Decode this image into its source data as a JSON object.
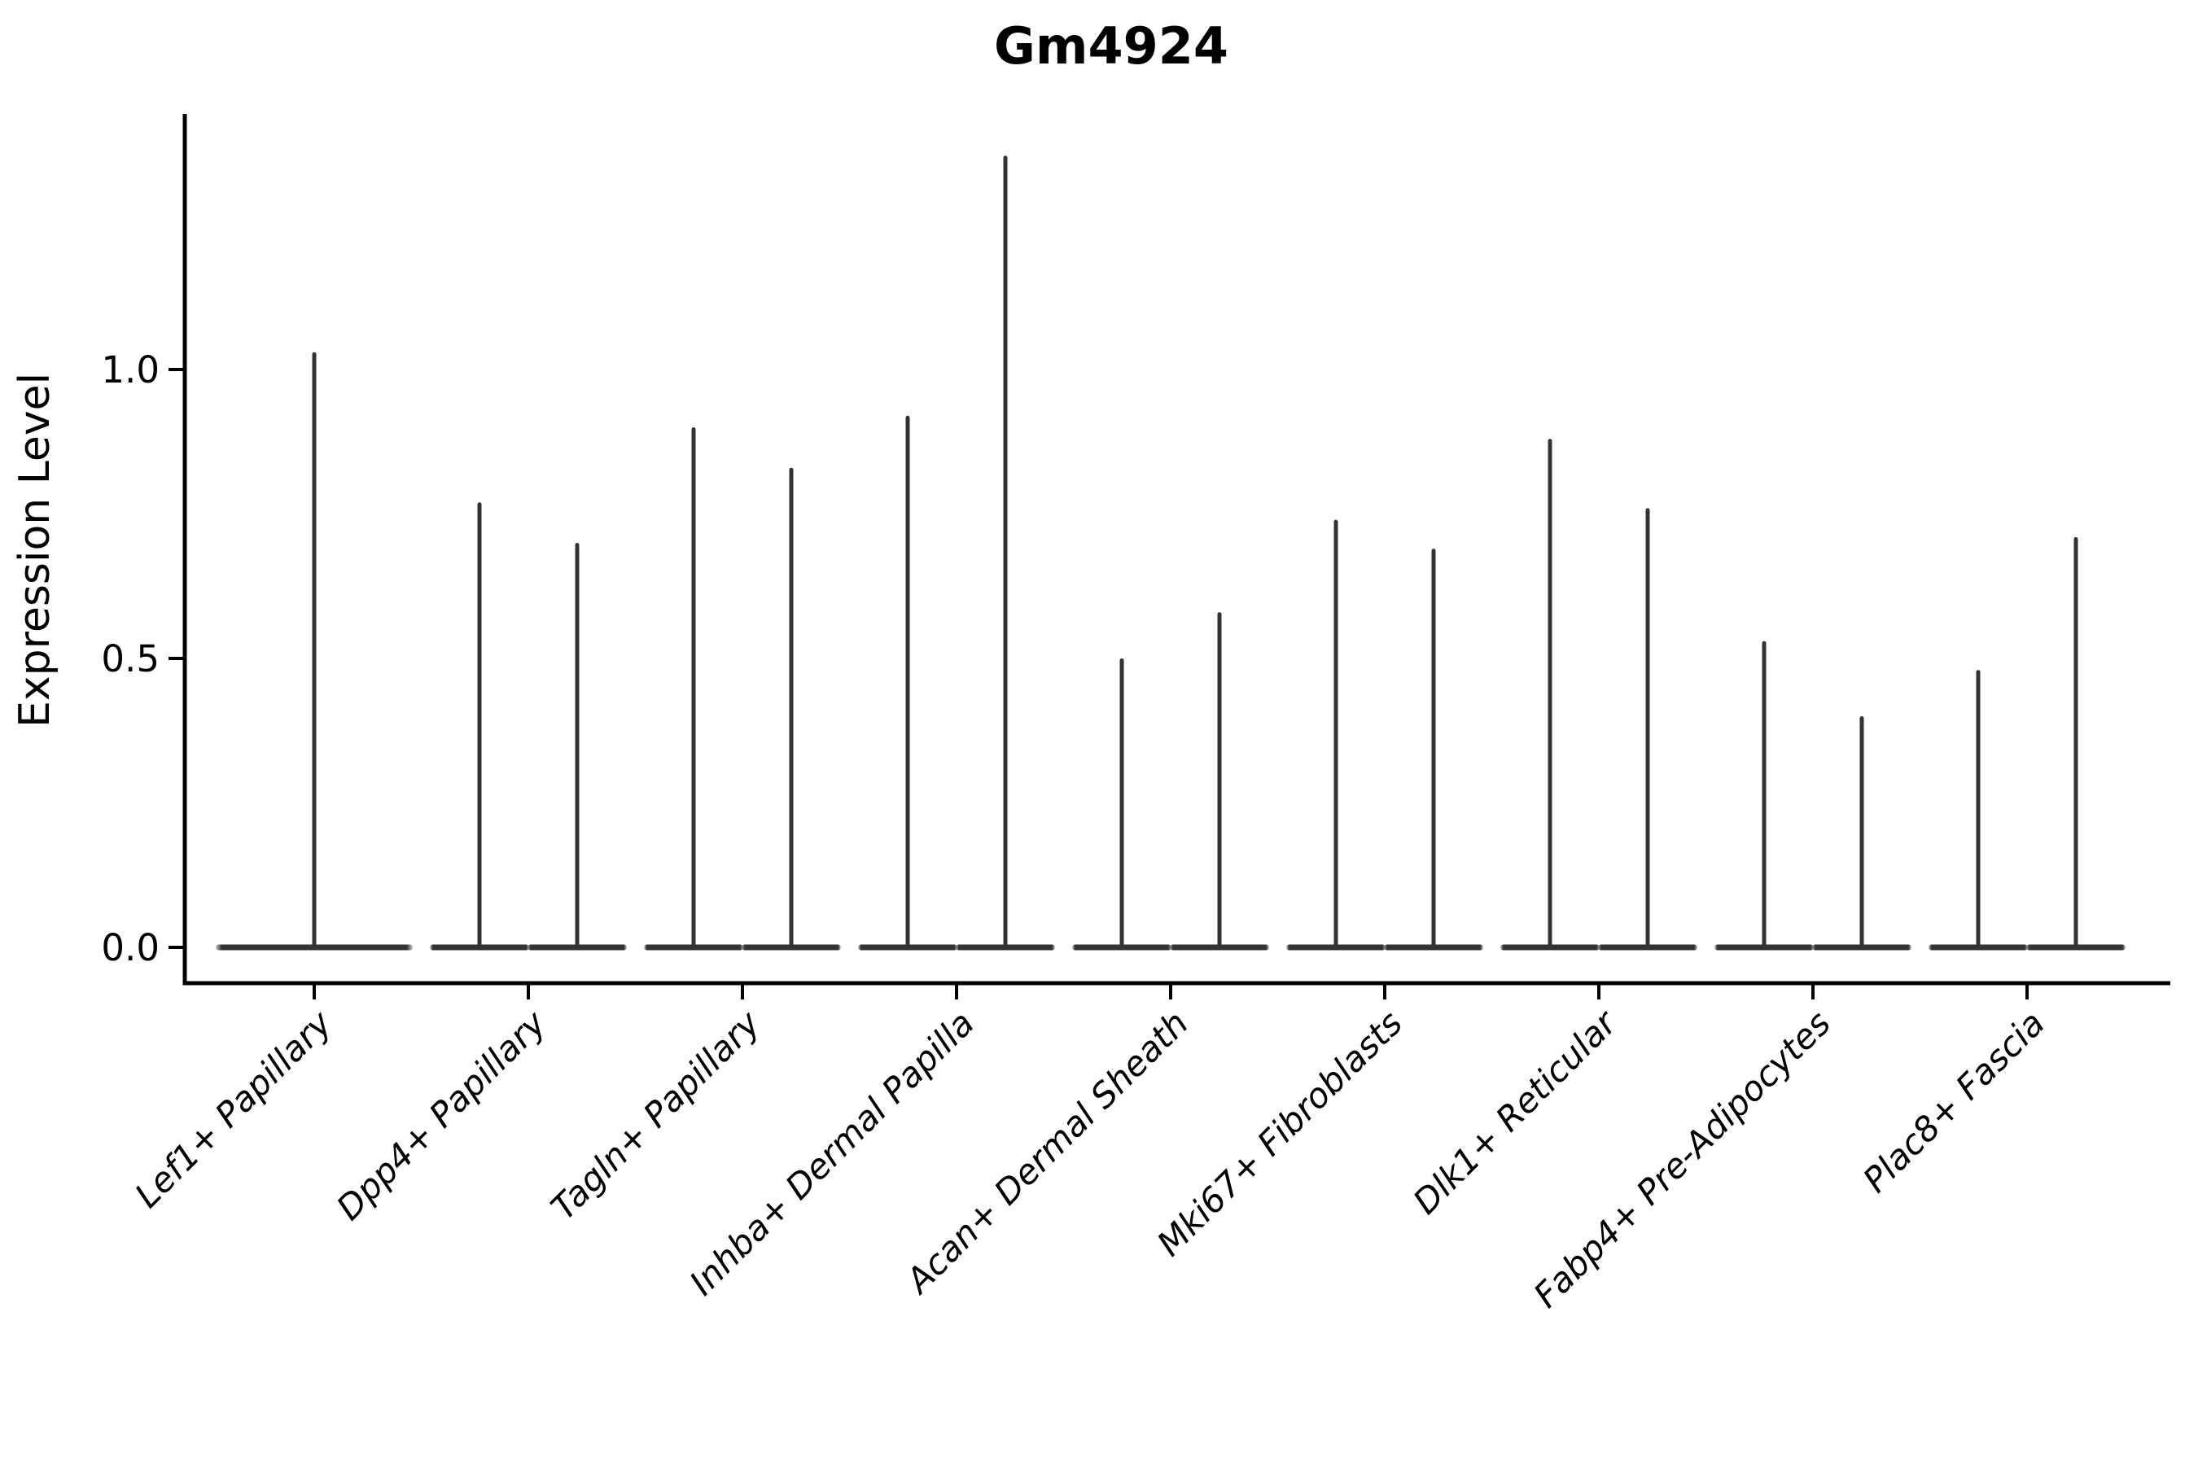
{
  "figure": {
    "background_color": "#ffffff",
    "axis_color": "#000000",
    "violin_color": "#333333"
  },
  "chart_data": {
    "type": "violin",
    "title": "Gm4924",
    "xlabel": "",
    "ylim": [
      -0.06,
      1.44
    ],
    "grid": false,
    "legend": "none",
    "y_axis": {
      "label": "Expression Level",
      "ticks": [
        {
          "label": "0.0",
          "value": 0.0
        },
        {
          "label": "0.5",
          "value": 0.5
        },
        {
          "label": "1.0",
          "value": 1.0
        }
      ]
    },
    "note": "Each violin collapses to a wide flat base at expression 0 plus a thin vertical density spike rising to the maximum expression value; maxima lists one value per violin in the category (left to right).",
    "categories": [
      {
        "label": "Lef1+ Papillary",
        "maxima": [
          1.03
        ]
      },
      {
        "label": "Dpp4+ Papillary",
        "maxima": [
          0.77,
          0.7
        ]
      },
      {
        "label": "Tagln+ Papillary",
        "maxima": [
          0.9,
          0.83
        ]
      },
      {
        "label": "Inhba+ Dermal Papilla",
        "maxima": [
          0.92,
          1.37
        ]
      },
      {
        "label": "Acan+ Dermal Sheath",
        "maxima": [
          0.5,
          0.58
        ]
      },
      {
        "label": "Mki67+ Fibroblasts",
        "maxima": [
          0.74,
          0.69
        ]
      },
      {
        "label": "Dlk1+ Reticular",
        "maxima": [
          0.88,
          0.76
        ]
      },
      {
        "label": "Fabp4+ Pre-Adipocytes",
        "maxima": [
          0.53,
          0.4
        ]
      },
      {
        "label": "Plac8+ Fascia",
        "maxima": [
          0.48,
          0.71
        ]
      }
    ]
  }
}
